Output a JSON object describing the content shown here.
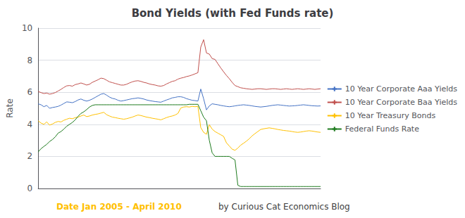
{
  "chart_data": {
    "type": "line",
    "title": "Bond Yields (with Fed Funds rate)",
    "ylabel": "Rate",
    "annotations": [
      {
        "text": "Date Jan 2005 - April 2010",
        "color": "#FFC000"
      },
      {
        "text": "by Curious Cat Economics Blog",
        "color": "#404040"
      }
    ],
    "categories": [
      null,
      null,
      null,
      null,
      null,
      null,
      null,
      null,
      null,
      null,
      null,
      null,
      null,
      null,
      null,
      null,
      null,
      null,
      null,
      null,
      null,
      null,
      null,
      null,
      null,
      null,
      null,
      null,
      null,
      null,
      null,
      null,
      null,
      null,
      null,
      null,
      null,
      null,
      null,
      null,
      null,
      null,
      null,
      null,
      null,
      null,
      null,
      null,
      null,
      null,
      null,
      null,
      null,
      null,
      null,
      null,
      null,
      null,
      null,
      null,
      null,
      null,
      null,
      null,
      null,
      null,
      null,
      null,
      null,
      null,
      null,
      null,
      null,
      null,
      null,
      null,
      null,
      null,
      null,
      null,
      null,
      null,
      null,
      null,
      null,
      null,
      null,
      null,
      null,
      null,
      null,
      null,
      null,
      null,
      null,
      null,
      null,
      null,
      null,
      null
    ],
    "series": [
      {
        "name": "10 Year Corporate Aaa Yields",
        "color": "#4472C4",
        "values": [
          5.28,
          5.22,
          5.1,
          5.18,
          5.0,
          5.05,
          5.08,
          5.12,
          5.2,
          5.3,
          5.4,
          5.38,
          5.35,
          5.42,
          5.52,
          5.58,
          5.5,
          5.45,
          5.5,
          5.58,
          5.68,
          5.78,
          5.88,
          5.92,
          5.82,
          5.7,
          5.62,
          5.58,
          5.5,
          5.45,
          5.48,
          5.52,
          5.56,
          5.6,
          5.62,
          5.65,
          5.62,
          5.58,
          5.52,
          5.48,
          5.45,
          5.42,
          5.4,
          5.38,
          5.45,
          5.52,
          5.58,
          5.65,
          5.68,
          5.72,
          5.72,
          5.68,
          5.6,
          5.55,
          5.5,
          5.48,
          5.45,
          6.2,
          5.6,
          4.9,
          5.15,
          5.28,
          5.25,
          5.22,
          5.18,
          5.15,
          5.12,
          5.1,
          5.12,
          5.15,
          5.18,
          5.2,
          5.22,
          5.2,
          5.18,
          5.15,
          5.12,
          5.1,
          5.08,
          5.1,
          5.12,
          5.15,
          5.18,
          5.2,
          5.22,
          5.2,
          5.18,
          5.16,
          5.14,
          5.15,
          5.16,
          5.18,
          5.2,
          5.22,
          5.2,
          5.18,
          5.16,
          5.15,
          5.14,
          5.15
        ]
      },
      {
        "name": "10 Year Corporate Baa Yields",
        "color": "#C0504D",
        "values": [
          6.05,
          5.98,
          5.92,
          5.95,
          5.88,
          5.92,
          5.98,
          6.08,
          6.18,
          6.3,
          6.4,
          6.42,
          6.38,
          6.48,
          6.52,
          6.58,
          6.52,
          6.45,
          6.5,
          6.62,
          6.7,
          6.78,
          6.88,
          6.85,
          6.75,
          6.65,
          6.6,
          6.55,
          6.5,
          6.45,
          6.45,
          6.5,
          6.58,
          6.65,
          6.7,
          6.72,
          6.68,
          6.62,
          6.58,
          6.52,
          6.48,
          6.45,
          6.4,
          6.38,
          6.42,
          6.52,
          6.6,
          6.68,
          6.72,
          6.82,
          6.88,
          6.92,
          6.98,
          7.02,
          7.08,
          7.15,
          7.22,
          8.82,
          9.28,
          8.45,
          8.38,
          8.1,
          8.05,
          7.78,
          7.52,
          7.28,
          7.05,
          6.85,
          6.62,
          6.42,
          6.35,
          6.28,
          6.25,
          6.22,
          6.2,
          6.18,
          6.2,
          6.22,
          6.22,
          6.2,
          6.18,
          6.2,
          6.22,
          6.22,
          6.2,
          6.18,
          6.2,
          6.22,
          6.2,
          6.18,
          6.2,
          6.22,
          6.2,
          6.18,
          6.2,
          6.22,
          6.2,
          6.18,
          6.2,
          6.22
        ]
      },
      {
        "name": "10 Year Treasury Bonds",
        "color": "#FFC000",
        "values": [
          4.22,
          4.08,
          4.0,
          4.15,
          3.95,
          4.02,
          4.12,
          4.18,
          4.15,
          4.25,
          4.32,
          4.38,
          4.35,
          4.42,
          4.45,
          4.52,
          4.58,
          4.48,
          4.52,
          4.58,
          4.62,
          4.65,
          4.7,
          4.75,
          4.6,
          4.52,
          4.45,
          4.42,
          4.38,
          4.35,
          4.32,
          4.35,
          4.4,
          4.45,
          4.52,
          4.58,
          4.55,
          4.5,
          4.45,
          4.42,
          4.38,
          4.35,
          4.32,
          4.28,
          4.35,
          4.42,
          4.48,
          4.52,
          4.58,
          4.68,
          5.02,
          5.08,
          5.1,
          5.08,
          5.12,
          5.1,
          5.12,
          3.8,
          3.5,
          3.38,
          3.98,
          3.7,
          3.55,
          3.45,
          3.35,
          3.25,
          2.85,
          2.65,
          2.45,
          2.38,
          2.52,
          2.7,
          2.82,
          2.95,
          3.1,
          3.28,
          3.42,
          3.55,
          3.68,
          3.72,
          3.75,
          3.78,
          3.75,
          3.72,
          3.68,
          3.65,
          3.62,
          3.6,
          3.58,
          3.55,
          3.52,
          3.5,
          3.52,
          3.55,
          3.58,
          3.6,
          3.58,
          3.55,
          3.52,
          3.5
        ]
      },
      {
        "name": "Federal Funds Rate",
        "color": "#1E7B1E",
        "values": [
          2.28,
          2.48,
          2.62,
          2.75,
          2.93,
          3.05,
          3.22,
          3.45,
          3.55,
          3.7,
          3.88,
          4.0,
          4.12,
          4.28,
          4.5,
          4.68,
          4.78,
          4.92,
          5.08,
          5.18,
          5.22,
          5.22,
          5.22,
          5.22,
          5.22,
          5.22,
          5.22,
          5.22,
          5.22,
          5.22,
          5.22,
          5.22,
          5.22,
          5.22,
          5.22,
          5.22,
          5.22,
          5.22,
          5.22,
          5.22,
          5.22,
          5.22,
          5.22,
          5.22,
          5.22,
          5.22,
          5.22,
          5.22,
          5.22,
          5.22,
          5.22,
          5.22,
          5.22,
          5.25,
          5.25,
          5.25,
          5.25,
          4.85,
          4.45,
          4.22,
          3.0,
          2.22,
          2.0,
          2.0,
          2.0,
          2.0,
          2.0,
          2.0,
          1.88,
          1.78,
          0.2,
          0.12,
          0.12,
          0.12,
          0.12,
          0.12,
          0.12,
          0.12,
          0.12,
          0.12,
          0.12,
          0.12,
          0.12,
          0.12,
          0.12,
          0.12,
          0.12,
          0.12,
          0.12,
          0.12,
          0.12,
          0.12,
          0.12,
          0.12,
          0.12,
          0.12,
          0.12,
          0.12,
          0.12,
          0.12
        ]
      }
    ],
    "ylim": [
      0,
      10
    ],
    "yticks": [
      0,
      2,
      4,
      6,
      8,
      10
    ],
    "grid": true,
    "legend": "right",
    "marker": "plus",
    "tick_labels": "y"
  }
}
